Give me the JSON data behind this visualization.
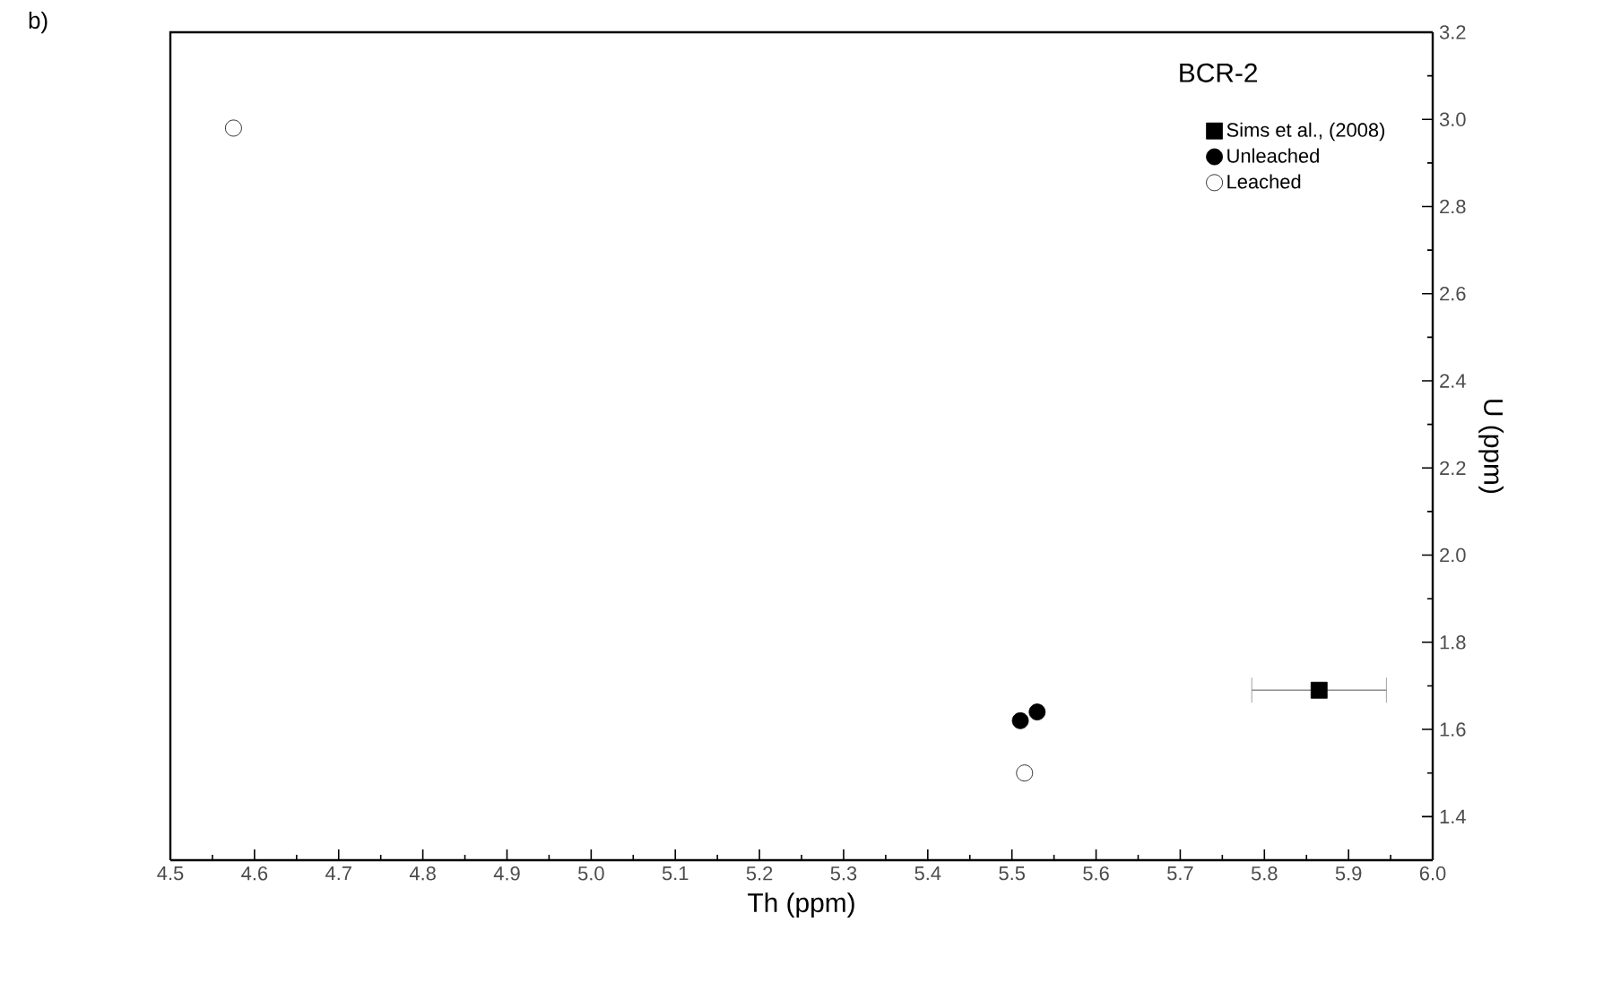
{
  "chart_data": {
    "type": "scatter",
    "xlabel": "Th (ppm)",
    "ylabel": "U (ppm)",
    "annotations": [
      "b)",
      "BCR-2"
    ],
    "xlim": [
      4.5,
      6.0
    ],
    "ylim": [
      1.3,
      3.2
    ],
    "xticks": [
      4.5,
      4.6,
      4.7,
      4.8,
      4.9,
      {
        "value": 5.0,
        "label": "5.0"
      },
      5.1,
      5.2,
      5.3,
      5.4,
      5.5,
      5.6,
      5.7,
      5.8,
      5.9,
      {
        "value": 6.0,
        "label": "6.0"
      }
    ],
    "yticks": [
      1.4,
      1.6,
      1.8,
      {
        "value": 2.0,
        "label": "2.0"
      },
      2.2,
      2.4,
      2.6,
      2.8,
      {
        "value": 3.0,
        "label": "3.0"
      },
      3.2
    ],
    "legend": "top right",
    "series": [
      {
        "name": "Sims et al., (2008)",
        "color": "#000000",
        "marker": "square",
        "x": [
          5.865
        ],
        "values": [
          1.69
        ],
        "xerrors": [
          0.08
        ]
      },
      {
        "name": "Unleached",
        "color": "#000000",
        "marker": "circle",
        "x": [
          5.51,
          5.53
        ],
        "values": [
          1.62,
          1.64
        ]
      },
      {
        "name": "Leached",
        "color": "#000000",
        "marker": "circle_open",
        "x": [
          4.575,
          5.515
        ],
        "values": [
          2.98,
          1.5
        ]
      }
    ]
  }
}
